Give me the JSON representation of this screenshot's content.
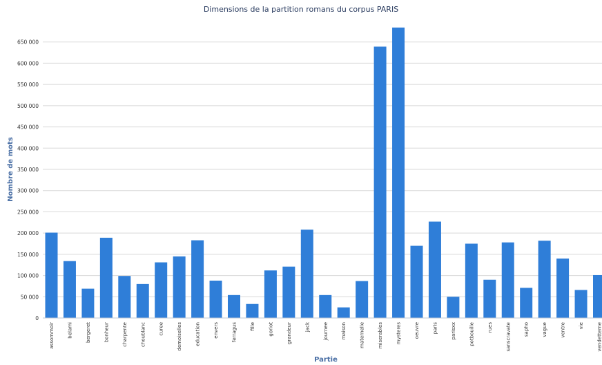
{
  "chart_data": {
    "type": "bar",
    "title": "Dimensions de la partition romans du corpus PARIS",
    "xlabel": "Partie",
    "ylabel": "Nombre de mots",
    "ylim": [
      0,
      700000
    ],
    "yticks": [
      0,
      50000,
      100000,
      150000,
      200000,
      250000,
      300000,
      350000,
      400000,
      450000,
      500000,
      550000,
      600000,
      650000
    ],
    "ytick_labels": [
      "0",
      "50 000",
      "100 000",
      "150 000",
      "200 000",
      "250 000",
      "300 000",
      "350 000",
      "400 000",
      "450 000",
      "500 000",
      "550 000",
      "600 000",
      "650 000"
    ],
    "grid": true,
    "legend": "none",
    "bar_color": "#2f7ed8",
    "categories": [
      "assommoir",
      "belami",
      "bergeret",
      "bonheur",
      "charpente",
      "choublanc",
      "curee",
      "demoiselles",
      "education",
      "envers",
      "ferragus",
      "fille",
      "goriot",
      "grandeur",
      "jack",
      "journee",
      "maison",
      "maternelle",
      "miserables",
      "mysteres",
      "oeuvre",
      "paris",
      "parisxx",
      "potbouille",
      "rues",
      "sanscravate",
      "sapho",
      "vague",
      "ventre",
      "vie",
      "vendetteme"
    ],
    "values": [
      201000,
      134000,
      69000,
      189000,
      99000,
      80000,
      131000,
      145000,
      183000,
      88000,
      54000,
      33000,
      112000,
      121000,
      208000,
      54000,
      25000,
      87000,
      639000,
      684000,
      170000,
      227000,
      50000,
      175000,
      90000,
      178000,
      71000,
      182000,
      140000,
      66000,
      101000
    ]
  }
}
